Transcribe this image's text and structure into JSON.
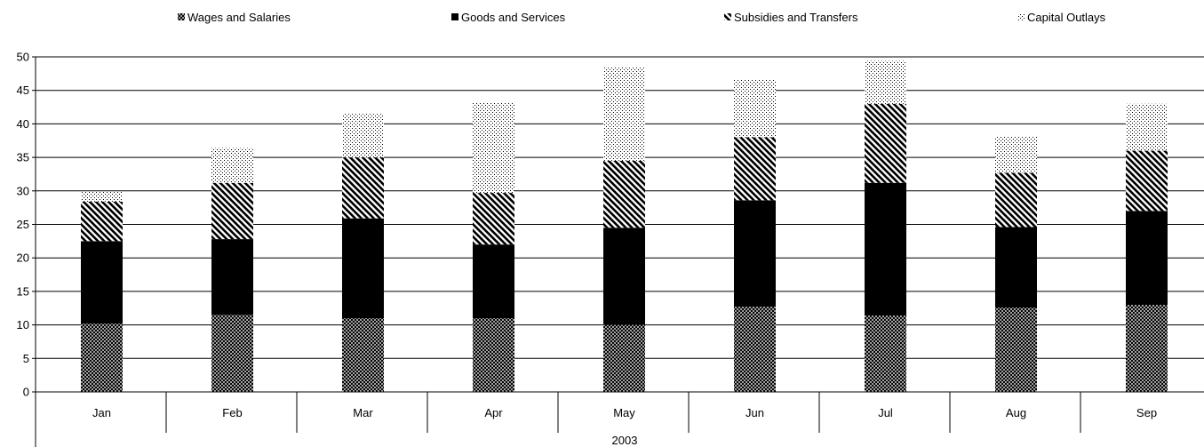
{
  "chart_data": {
    "type": "bar",
    "stacked": true,
    "title": "",
    "xlabel": "",
    "ylabel": "",
    "ylim": [
      0,
      50
    ],
    "yticks": [
      0,
      5,
      10,
      15,
      20,
      25,
      30,
      35,
      40,
      45,
      50
    ],
    "grid": true,
    "legend_position": "top",
    "categories": [
      "Jan",
      "Feb",
      "Mar",
      "Apr",
      "May",
      "Jun",
      "Jul",
      "Aug",
      "Sep"
    ],
    "category_group": "2003",
    "series": [
      {
        "name": "Wages and Salaries",
        "pattern": "crosshatch",
        "values": [
          10.2,
          11.5,
          11.0,
          11.0,
          10.0,
          12.7,
          11.4,
          12.6,
          13.0
        ]
      },
      {
        "name": "Goods and Services",
        "pattern": "solid",
        "values": [
          12.3,
          11.3,
          14.9,
          11.0,
          14.5,
          15.9,
          19.8,
          12.0,
          14.0
        ]
      },
      {
        "name": "Subsidies and Transfers",
        "pattern": "diagonal",
        "values": [
          5.9,
          8.4,
          9.1,
          7.7,
          10.0,
          9.4,
          11.8,
          8.1,
          9.0
        ]
      },
      {
        "name": "Capital Outlays",
        "pattern": "dots",
        "values": [
          1.5,
          5.2,
          6.5,
          13.5,
          13.9,
          8.6,
          6.4,
          5.4,
          7.0
        ]
      }
    ],
    "colors": {
      "ink": "#000000",
      "background": "#ffffff"
    }
  }
}
